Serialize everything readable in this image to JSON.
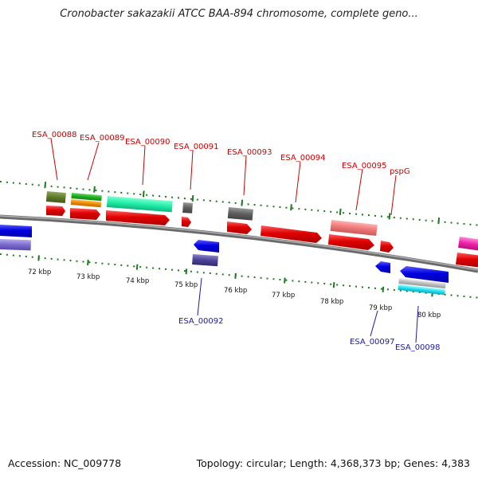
{
  "title": "Cronobacter sakazakii ATCC BAA-894 chromosome, complete geno...",
  "footer": {
    "accession": "Accession: NC_009778",
    "info": "Topology: circular; Length: 4,368,373 bp; Genes: 4,383"
  },
  "scale_labels": [
    "72 kbp",
    "73 kbp",
    "74 kbp",
    "75 kbp",
    "76 kbp",
    "77 kbp",
    "78 kbp",
    "79 kbp",
    "80 kbp"
  ],
  "gene_labels_top": [
    "ESA_00088",
    "ESA_00089",
    "ESA_00090",
    "ESA_00091",
    "ESA_00093",
    "ESA_00094",
    "ESA_00095",
    "pspG"
  ],
  "gene_labels_bottom": [
    "ESA_00092",
    "ESA_00097",
    "ESA_00098"
  ],
  "colors": {
    "forward_label": "#cc0000",
    "reverse_label": "#1a1aa6",
    "ticks": "#1e7a1e",
    "backbone": "#8a8a8a"
  }
}
